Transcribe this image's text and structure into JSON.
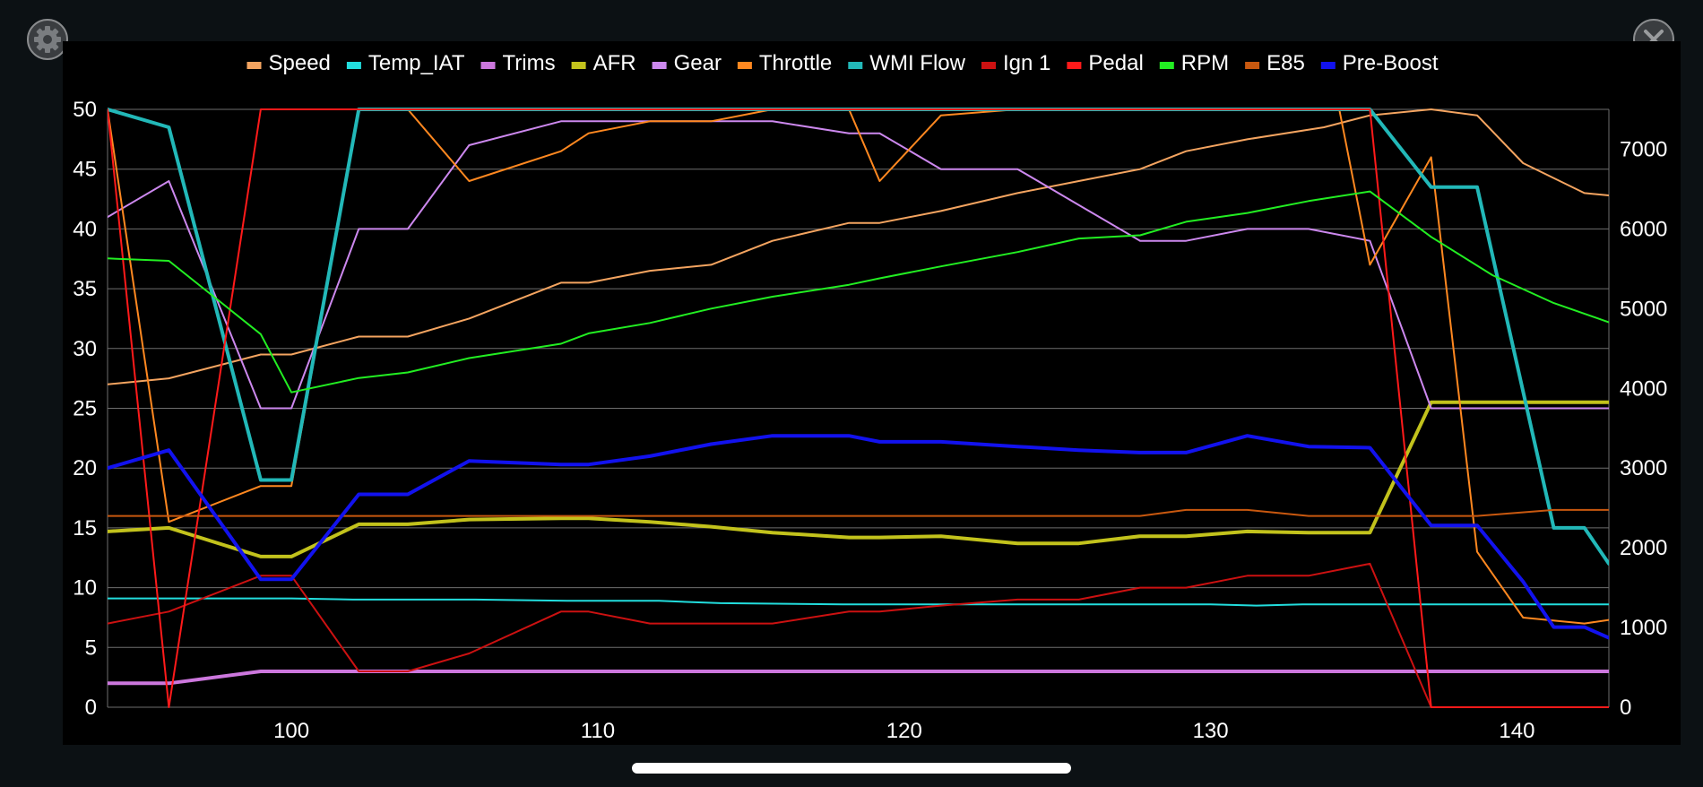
{
  "icons": {
    "settings": "gear-icon",
    "close": "close-icon"
  },
  "chart_data": {
    "type": "line",
    "title": "",
    "xlabel": "",
    "ylabel": "",
    "xlim": [
      94,
      143
    ],
    "ylim_left": [
      0,
      50
    ],
    "ylim_right": [
      0,
      7500
    ],
    "x_ticks": [
      100,
      110,
      120,
      130,
      140
    ],
    "y_ticks_left": [
      0,
      5,
      10,
      15,
      20,
      25,
      30,
      35,
      40,
      45,
      50
    ],
    "y_ticks_right": [
      0,
      1000,
      2000,
      3000,
      4000,
      5000,
      6000,
      7000
    ],
    "grid": true,
    "legend_position": "top",
    "series": [
      {
        "name": "Speed",
        "color": "#f4a460",
        "width": 2,
        "axis": "left",
        "points": [
          [
            94,
            27
          ],
          [
            96,
            27.5
          ],
          [
            99,
            29.5
          ],
          [
            100,
            29.5
          ],
          [
            102.2,
            31
          ],
          [
            103.8,
            31
          ],
          [
            105.8,
            32.5
          ],
          [
            108.8,
            35.5
          ],
          [
            109.7,
            35.5
          ],
          [
            111.7,
            36.5
          ],
          [
            113.7,
            37
          ],
          [
            115.7,
            39
          ],
          [
            118.2,
            40.5
          ],
          [
            119.2,
            40.5
          ],
          [
            121.2,
            41.5
          ],
          [
            123.7,
            43
          ],
          [
            125.7,
            44
          ],
          [
            127.7,
            45
          ],
          [
            129.2,
            46.5
          ],
          [
            131.2,
            47.5
          ],
          [
            133.7,
            48.5
          ],
          [
            135.2,
            49.5
          ],
          [
            137.2,
            50
          ],
          [
            138.7,
            49.5
          ],
          [
            140.2,
            45.5
          ],
          [
            142.2,
            43
          ],
          [
            143,
            42.8
          ]
        ]
      },
      {
        "name": "Temp_IAT",
        "color": "#22dddd",
        "width": 2,
        "axis": "left",
        "points": [
          [
            94,
            9.1
          ],
          [
            100,
            9.1
          ],
          [
            102,
            9
          ],
          [
            106,
            9
          ],
          [
            109,
            8.9
          ],
          [
            112,
            8.9
          ],
          [
            114,
            8.7
          ],
          [
            118,
            8.6
          ],
          [
            130,
            8.6
          ],
          [
            131.5,
            8.5
          ],
          [
            133,
            8.6
          ],
          [
            143,
            8.6
          ]
        ]
      },
      {
        "name": "Trims",
        "color": "#cc77dd",
        "width": 4,
        "axis": "left",
        "points": [
          [
            94,
            2
          ],
          [
            96,
            2
          ],
          [
            99,
            3
          ],
          [
            143,
            3
          ]
        ]
      },
      {
        "name": "AFR",
        "color": "#c2c21c",
        "width": 4,
        "axis": "left",
        "points": [
          [
            94,
            14.7
          ],
          [
            96,
            15
          ],
          [
            99,
            12.6
          ],
          [
            100,
            12.6
          ],
          [
            102.2,
            15.3
          ],
          [
            103.8,
            15.3
          ],
          [
            105.8,
            15.7
          ],
          [
            108.8,
            15.8
          ],
          [
            109.7,
            15.8
          ],
          [
            111.7,
            15.5
          ],
          [
            113.7,
            15.1
          ],
          [
            115.7,
            14.6
          ],
          [
            118.2,
            14.2
          ],
          [
            119.2,
            14.2
          ],
          [
            121.2,
            14.3
          ],
          [
            123.7,
            13.7
          ],
          [
            125.7,
            13.7
          ],
          [
            127.7,
            14.3
          ],
          [
            129.2,
            14.3
          ],
          [
            131.2,
            14.7
          ],
          [
            133.2,
            14.6
          ],
          [
            135.2,
            14.6
          ],
          [
            137.2,
            25.5
          ],
          [
            143,
            25.5
          ]
        ]
      },
      {
        "name": "Gear",
        "color": "#cc88ee",
        "width": 2,
        "axis": "left",
        "points": [
          [
            94,
            41
          ],
          [
            96,
            44
          ],
          [
            99,
            25
          ],
          [
            100,
            25
          ],
          [
            102.2,
            40
          ],
          [
            103.8,
            40
          ],
          [
            105.8,
            47
          ],
          [
            108.8,
            49
          ],
          [
            109.7,
            49
          ],
          [
            111.7,
            49
          ],
          [
            113.7,
            49
          ],
          [
            115.7,
            49
          ],
          [
            118.2,
            48
          ],
          [
            119.2,
            48
          ],
          [
            121.2,
            45
          ],
          [
            123.7,
            45
          ],
          [
            125.7,
            42
          ],
          [
            127.7,
            39
          ],
          [
            129.2,
            39
          ],
          [
            131.2,
            40
          ],
          [
            133.2,
            40
          ],
          [
            135.2,
            39
          ],
          [
            137.2,
            25
          ],
          [
            143,
            25
          ]
        ]
      },
      {
        "name": "Throttle",
        "color": "#ff8820",
        "width": 2,
        "axis": "left",
        "points": [
          [
            94,
            50
          ],
          [
            96,
            15.5
          ],
          [
            99,
            18.5
          ],
          [
            100,
            18.5
          ],
          [
            102.2,
            50
          ],
          [
            103.8,
            50
          ],
          [
            105.8,
            44
          ],
          [
            108.8,
            46.5
          ],
          [
            109.7,
            48
          ],
          [
            111.7,
            49
          ],
          [
            113.7,
            49
          ],
          [
            115.7,
            50
          ],
          [
            118.2,
            50
          ],
          [
            119.2,
            44
          ],
          [
            121.2,
            49.5
          ],
          [
            123.7,
            50
          ],
          [
            134.2,
            50
          ],
          [
            135.2,
            37
          ],
          [
            137.2,
            46
          ],
          [
            138.7,
            13
          ],
          [
            140.2,
            7.5
          ],
          [
            142.2,
            7
          ],
          [
            143,
            7.3
          ]
        ]
      },
      {
        "name": "WMI Flow",
        "color": "#22b8b8",
        "width": 4,
        "axis": "left",
        "points": [
          [
            94,
            50
          ],
          [
            96,
            48.5
          ],
          [
            99,
            19
          ],
          [
            100,
            19
          ],
          [
            102.2,
            50
          ],
          [
            135.2,
            50
          ],
          [
            137.2,
            43.5
          ],
          [
            138.7,
            43.5
          ],
          [
            141.2,
            15
          ],
          [
            142.2,
            15
          ],
          [
            143,
            12
          ]
        ]
      },
      {
        "name": "Ign 1",
        "color": "#cc1111",
        "width": 2,
        "axis": "left",
        "points": [
          [
            94,
            7
          ],
          [
            96,
            8
          ],
          [
            99,
            11
          ],
          [
            100,
            11
          ],
          [
            102.2,
            3
          ],
          [
            103.8,
            3
          ],
          [
            105.8,
            4.5
          ],
          [
            108.8,
            8
          ],
          [
            109.7,
            8
          ],
          [
            111.7,
            7
          ],
          [
            113.7,
            7
          ],
          [
            115.7,
            7
          ],
          [
            118.2,
            8
          ],
          [
            119.2,
            8
          ],
          [
            121.2,
            8.5
          ],
          [
            123.7,
            9
          ],
          [
            125.7,
            9
          ],
          [
            127.7,
            10
          ],
          [
            129.2,
            10
          ],
          [
            131.2,
            11
          ],
          [
            133.2,
            11
          ],
          [
            135.2,
            12
          ],
          [
            137.2,
            0
          ],
          [
            143,
            0
          ]
        ]
      },
      {
        "name": "Pedal",
        "color": "#ff1a1a",
        "width": 2,
        "axis": "left",
        "points": [
          [
            94,
            50
          ],
          [
            96,
            0
          ],
          [
            99,
            50
          ],
          [
            135.2,
            50
          ],
          [
            137.2,
            0
          ],
          [
            143,
            0
          ]
        ]
      },
      {
        "name": "RPM",
        "color": "#22ee22",
        "width": 2,
        "axis": "right",
        "points": [
          [
            94,
            5630
          ],
          [
            96,
            5600
          ],
          [
            99,
            4680
          ],
          [
            100,
            3950
          ],
          [
            102.2,
            4130
          ],
          [
            103.8,
            4200
          ],
          [
            105.8,
            4380
          ],
          [
            108.8,
            4560
          ],
          [
            109.7,
            4690
          ],
          [
            111.7,
            4820
          ],
          [
            113.7,
            5000
          ],
          [
            115.7,
            5150
          ],
          [
            118.2,
            5300
          ],
          [
            119.2,
            5380
          ],
          [
            121.2,
            5530
          ],
          [
            123.7,
            5710
          ],
          [
            125.7,
            5880
          ],
          [
            127.7,
            5920
          ],
          [
            129.2,
            6090
          ],
          [
            131.2,
            6200
          ],
          [
            133.2,
            6350
          ],
          [
            135.2,
            6470
          ],
          [
            137.2,
            5900
          ],
          [
            139.2,
            5420
          ],
          [
            141.2,
            5070
          ],
          [
            143,
            4830
          ]
        ]
      },
      {
        "name": "E85",
        "color": "#c8580f",
        "width": 2,
        "axis": "left",
        "points": [
          [
            94,
            16
          ],
          [
            127.7,
            16
          ],
          [
            129.2,
            16.5
          ],
          [
            131.2,
            16.5
          ],
          [
            133.2,
            16
          ],
          [
            138.7,
            16
          ],
          [
            141.2,
            16.5
          ],
          [
            143,
            16.5
          ]
        ]
      },
      {
        "name": "Pre-Boost",
        "color": "#1212ee",
        "width": 4,
        "axis": "left",
        "points": [
          [
            94,
            20
          ],
          [
            96,
            21.5
          ],
          [
            99,
            10.7
          ],
          [
            100,
            10.7
          ],
          [
            102.2,
            17.8
          ],
          [
            103.8,
            17.8
          ],
          [
            105.8,
            20.6
          ],
          [
            108.8,
            20.3
          ],
          [
            109.7,
            20.3
          ],
          [
            111.7,
            21
          ],
          [
            113.7,
            22
          ],
          [
            115.7,
            22.7
          ],
          [
            118.2,
            22.7
          ],
          [
            119.2,
            22.2
          ],
          [
            121.2,
            22.2
          ],
          [
            123.7,
            21.8
          ],
          [
            125.7,
            21.5
          ],
          [
            127.7,
            21.3
          ],
          [
            129.2,
            21.3
          ],
          [
            131.2,
            22.7
          ],
          [
            133.2,
            21.8
          ],
          [
            135.2,
            21.7
          ],
          [
            137.2,
            15.2
          ],
          [
            138.7,
            15.2
          ],
          [
            140.2,
            10.5
          ],
          [
            141.2,
            6.7
          ],
          [
            142.2,
            6.7
          ],
          [
            143,
            5.8
          ]
        ]
      }
    ]
  }
}
